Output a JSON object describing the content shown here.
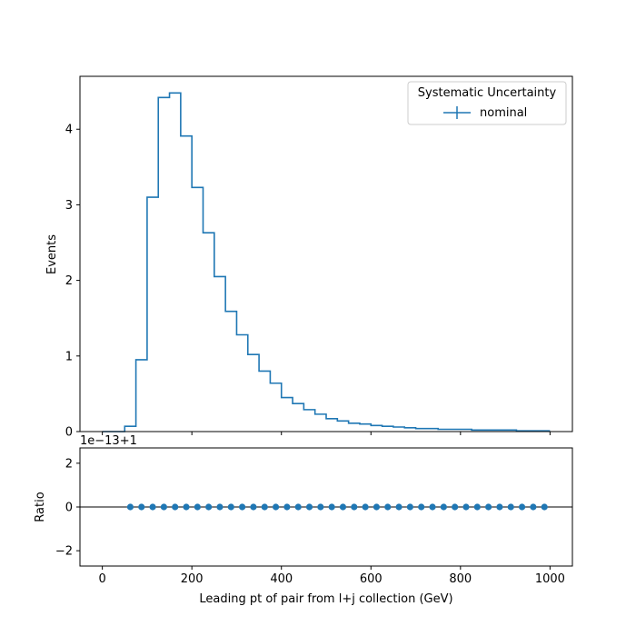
{
  "chart_data": [
    {
      "type": "line",
      "style": "step-histogram",
      "xlabel": "",
      "ylabel": "Events",
      "xlim": [
        -50,
        1050
      ],
      "ylim": [
        0,
        4.7
      ],
      "x_ticks": [
        0,
        200,
        400,
        600,
        800,
        1000
      ],
      "x_tick_labels": [
        "",
        "",
        "",
        "",
        "",
        ""
      ],
      "y_ticks": [
        0,
        1,
        2,
        3,
        4
      ],
      "y_tick_labels": [
        "0",
        "1",
        "2",
        "3",
        "4"
      ],
      "grid": false,
      "legend": {
        "title": "Systematic Uncertainty",
        "placement": "top-right",
        "entries": [
          "nominal"
        ]
      },
      "color": "#1f77b4",
      "bin_edges": [
        0,
        25,
        50,
        75,
        100,
        125,
        150,
        175,
        200,
        225,
        250,
        275,
        300,
        325,
        350,
        375,
        400,
        425,
        450,
        475,
        500,
        525,
        550,
        575,
        600,
        625,
        650,
        675,
        700,
        725,
        750,
        775,
        800,
        825,
        850,
        875,
        900,
        925,
        950,
        975,
        1000
      ],
      "series": [
        {
          "name": "nominal",
          "values": [
            0.0,
            0.0,
            0.07,
            0.95,
            3.1,
            4.42,
            4.48,
            3.91,
            3.23,
            2.63,
            2.05,
            1.59,
            1.28,
            1.02,
            0.8,
            0.64,
            0.45,
            0.37,
            0.29,
            0.23,
            0.17,
            0.14,
            0.11,
            0.1,
            0.08,
            0.07,
            0.06,
            0.05,
            0.04,
            0.04,
            0.03,
            0.03,
            0.03,
            0.02,
            0.02,
            0.02,
            0.02,
            0.01,
            0.01,
            0.01
          ]
        }
      ]
    },
    {
      "type": "scatter",
      "xlabel": "Leading pt of pair from l+j collection (GeV)",
      "ylabel": "Ratio",
      "offset_text": "1e−13+1",
      "xlim": [
        -50,
        1050
      ],
      "ylim": [
        -2.7,
        2.7
      ],
      "x_ticks": [
        0,
        200,
        400,
        600,
        800,
        1000
      ],
      "x_tick_labels": [
        "0",
        "200",
        "400",
        "600",
        "800",
        "1000"
      ],
      "y_ticks": [
        -2,
        0,
        2
      ],
      "y_tick_labels": [
        "−2",
        "0",
        "2"
      ],
      "reference_line": 0,
      "color": "#1f77b4",
      "x": [
        62.5,
        87.5,
        112.5,
        137.5,
        162.5,
        187.5,
        212.5,
        237.5,
        262.5,
        287.5,
        312.5,
        337.5,
        362.5,
        387.5,
        412.5,
        437.5,
        462.5,
        487.5,
        512.5,
        537.5,
        562.5,
        587.5,
        612.5,
        637.5,
        662.5,
        687.5,
        712.5,
        737.5,
        762.5,
        787.5,
        812.5,
        837.5,
        862.5,
        887.5,
        912.5,
        937.5,
        962.5,
        987.5
      ],
      "y": [
        0,
        0,
        0,
        0,
        0,
        0,
        0,
        0,
        0,
        0,
        0,
        0,
        0,
        0,
        0,
        0,
        0,
        0,
        0,
        0,
        0,
        0,
        0,
        0,
        0,
        0,
        0,
        0,
        0,
        0,
        0,
        0,
        0,
        0,
        0,
        0,
        0,
        0
      ]
    }
  ]
}
